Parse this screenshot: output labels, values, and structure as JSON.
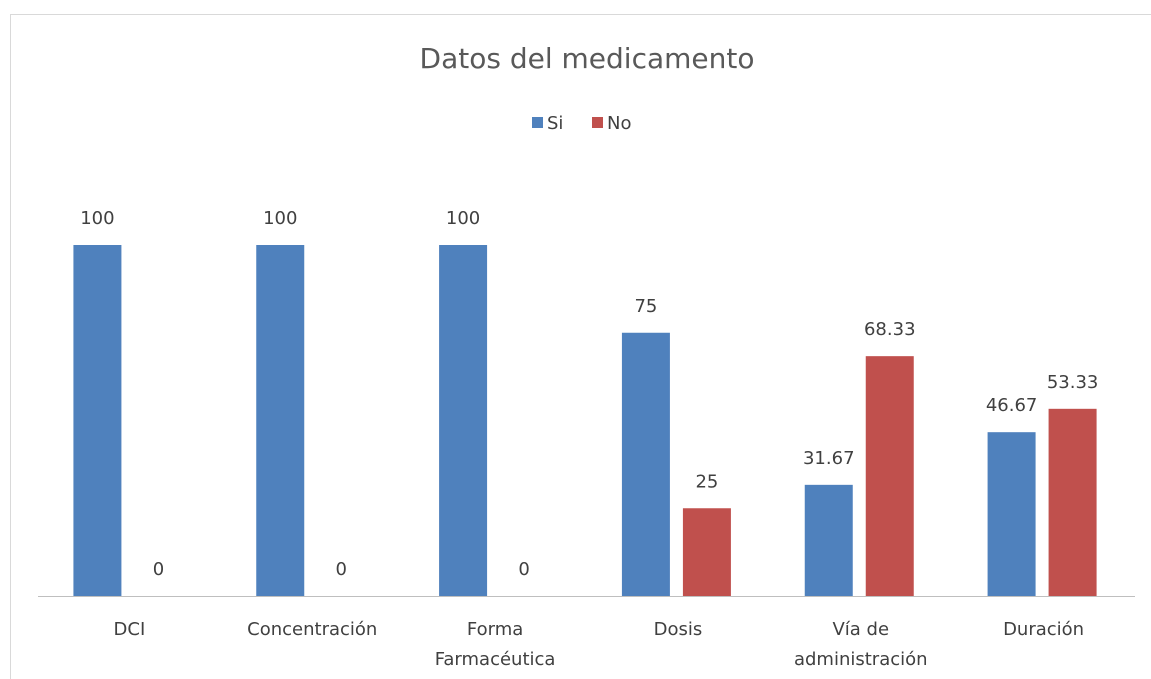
{
  "chart_data": {
    "type": "bar",
    "title": "Datos del medicamento",
    "categories": [
      "DCI",
      "Concentración",
      "Forma\nFarmacéutica",
      "Dosis",
      "Vía de\nadministración",
      "Duración"
    ],
    "series": [
      {
        "name": "Si",
        "color": "#4f81bd",
        "values": [
          100,
          100,
          100,
          75,
          31.67,
          46.67
        ]
      },
      {
        "name": "No",
        "color": "#c0504d",
        "values": [
          0,
          0,
          0,
          25,
          68.33,
          53.33
        ]
      }
    ],
    "legend": "top"
  }
}
